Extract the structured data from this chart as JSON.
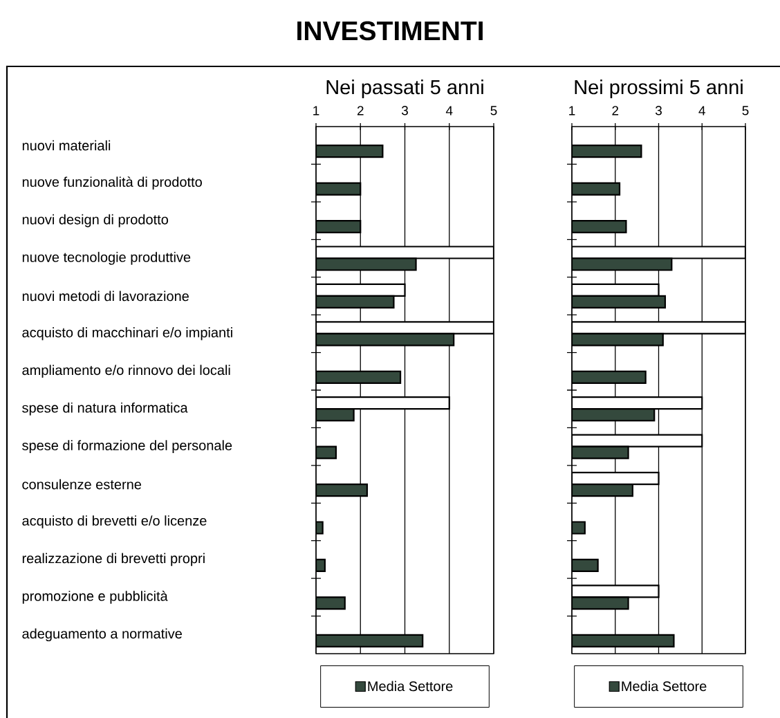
{
  "chart_data": [
    {
      "type": "bar",
      "orientation": "horizontal",
      "title": "INVESTIMENTI",
      "subtitle": "Nei passati 5 anni",
      "categories": [
        "nuovi materiali",
        "nuove funzionalità di prodotto",
        "nuovi design di prodotto",
        "nuove tecnologie produttive",
        "nuovi metodi di lavorazione",
        "acquisto di macchinari e/o impianti",
        "ampliamento e/o rinnovo dei locali",
        "spese di natura informatica",
        "spese di formazione del personale",
        "consulenze esterne",
        "acquisto di brevetti e/o licenze",
        "realizzazione di brevetti propri",
        "promozione e pubblicità",
        "adeguamento a normative"
      ],
      "series": [
        {
          "color": "#ffffff",
          "values": [
            null,
            null,
            null,
            5,
            3,
            5,
            null,
            4,
            null,
            null,
            null,
            null,
            null,
            null
          ]
        },
        {
          "name": "Media Settore",
          "color": "#34493d",
          "values": [
            2.5,
            2,
            2,
            3.25,
            2.75,
            4.1,
            2.9,
            1.85,
            1.45,
            2.15,
            1.15,
            1.2,
            1.65,
            3.4
          ]
        }
      ],
      "xlim": [
        1,
        5
      ],
      "xticks": [
        1,
        2,
        3,
        4,
        5
      ],
      "grid": "x",
      "legend": "bottom"
    },
    {
      "type": "bar",
      "orientation": "horizontal",
      "subtitle": "Nei prossimi 5 anni",
      "categories": [
        null,
        null,
        null,
        null,
        null,
        null,
        null,
        null,
        null,
        null,
        null,
        null,
        null,
        null
      ],
      "series": [
        {
          "color": "#ffffff",
          "values": [
            null,
            null,
            null,
            5,
            3,
            5,
            null,
            4,
            4,
            3,
            null,
            null,
            3,
            null
          ]
        },
        {
          "name": "Media Settore",
          "color": "#34493d",
          "values": [
            2.6,
            2.1,
            2.25,
            3.3,
            3.15,
            3.1,
            2.7,
            2.9,
            2.3,
            2.4,
            1.3,
            1.6,
            2.3,
            3.35
          ]
        }
      ],
      "xlim": [
        1,
        5
      ],
      "xticks": [
        1,
        2,
        3,
        4,
        5
      ],
      "grid": "x",
      "legend": "bottom"
    }
  ]
}
